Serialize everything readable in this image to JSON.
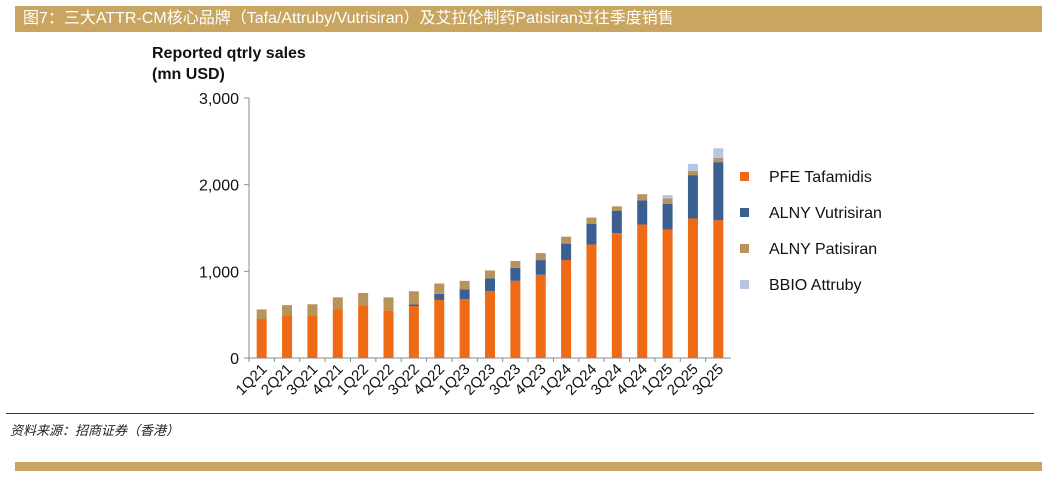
{
  "header": {
    "figure_title": "图7：三大ATTR-CM核心品牌（Tafa/Attruby/Vutrisiran）及艾拉伦制药Patisiran过往季度销售"
  },
  "source": "资料来源：招商证券（香港）",
  "colors": {
    "header_bar": "#c8a560",
    "PFE Tafamidis": "#ef6a15",
    "ALNY Vutrisiran": "#3c5f91",
    "ALNY Patisiran": "#b8935b",
    "BBIO Attruby": "#b6c6e1"
  },
  "chart_data": {
    "type": "bar",
    "stacked": true,
    "ylabel_line1": "Reported qtrly sales",
    "ylabel_line2": "(mn USD)",
    "ylim": [
      0,
      3000
    ],
    "yticks": [
      0,
      1000,
      2000,
      3000
    ],
    "ytick_labels": [
      "0",
      "1,000",
      "2,000",
      "3,000"
    ],
    "legend_position": "right",
    "grid": false,
    "categories": [
      "1Q21",
      "2Q21",
      "3Q21",
      "4Q21",
      "1Q22",
      "2Q22",
      "3Q22",
      "4Q22",
      "1Q23",
      "2Q23",
      "3Q23",
      "4Q23",
      "1Q24",
      "2Q24",
      "3Q24",
      "4Q24",
      "1Q25",
      "2Q25",
      "3Q25"
    ],
    "series": [
      {
        "name": "PFE Tafamidis",
        "values": [
          450,
          490,
          490,
          560,
          610,
          550,
          600,
          670,
          680,
          770,
          890,
          960,
          1130,
          1310,
          1440,
          1540,
          1480,
          1610,
          1590
        ]
      },
      {
        "name": "ALNY Vutrisiran",
        "values": [
          0,
          0,
          0,
          0,
          0,
          0,
          20,
          70,
          110,
          150,
          150,
          170,
          190,
          240,
          260,
          280,
          300,
          500,
          670
        ]
      },
      {
        "name": "ALNY Patisiran",
        "values": [
          110,
          120,
          130,
          140,
          140,
          150,
          150,
          120,
          100,
          90,
          80,
          80,
          80,
          70,
          50,
          70,
          60,
          50,
          50
        ]
      },
      {
        "name": "BBIO Attruby",
        "values": [
          0,
          0,
          0,
          0,
          0,
          0,
          0,
          0,
          0,
          0,
          0,
          0,
          0,
          0,
          0,
          0,
          40,
          80,
          110
        ]
      }
    ]
  }
}
